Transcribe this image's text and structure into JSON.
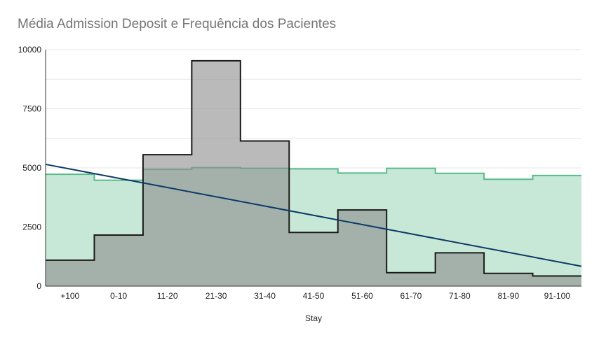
{
  "chart_data": {
    "type": "area",
    "title": "Média Admission Deposit e Frequência dos Pacientes",
    "xlabel": "Stay",
    "ylabel": "",
    "categories": [
      "+100",
      "0-10",
      "11-20",
      "21-30",
      "31-40",
      "41-50",
      "51-60",
      "61-70",
      "71-80",
      "81-90",
      "91-100"
    ],
    "ylim": [
      0,
      10000
    ],
    "yticks": [
      0,
      2500,
      5000,
      7500,
      10000
    ],
    "grid": true,
    "legend": "none",
    "step": true,
    "series": [
      {
        "values": [
          4730,
          4480,
          4940,
          5010,
          4980,
          4960,
          4780,
          4980,
          4770,
          4520,
          4680
        ],
        "color": "#57bb8a",
        "fill": "#c8e8d7"
      },
      {
        "values": [
          1100,
          2160,
          5560,
          9530,
          6140,
          2270,
          3220,
          570,
          1410,
          540,
          430
        ],
        "color": "#1a1a1a",
        "fill": "rgba(140,140,140,0.6)"
      }
    ],
    "trendline": {
      "start": 5150,
      "end": 840,
      "color": "#0b3a66"
    }
  }
}
